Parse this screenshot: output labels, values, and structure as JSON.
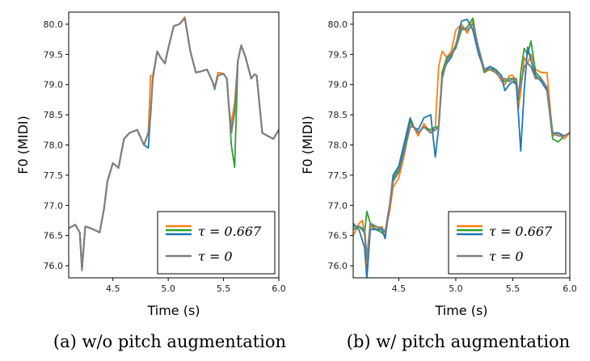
{
  "chart_data": [
    {
      "type": "line",
      "caption": "(a) w/o pitch augmentation",
      "xlabel": "Time (s)",
      "ylabel": "F0 (MIDI)",
      "xlim": [
        4.1,
        6.0
      ],
      "ylim": [
        75.8,
        80.2
      ],
      "xticks": [
        "4.5",
        "5.0",
        "5.5",
        "6.0"
      ],
      "yticks": [
        "76.0",
        "76.5",
        "77.0",
        "77.5",
        "78.0",
        "78.5",
        "79.0",
        "79.5",
        "80.0"
      ],
      "legend": {
        "position": "bottom-right",
        "entries": [
          "τ = 0.667",
          "τ = 0"
        ]
      },
      "series": [
        {
          "name": "τ = 0",
          "color": "#7f7f7f",
          "x": [
            4.1,
            4.16,
            4.2,
            4.22,
            4.25,
            4.3,
            4.35,
            4.38,
            4.42,
            4.45,
            4.5,
            4.55,
            4.6,
            4.65,
            4.72,
            4.78,
            4.82,
            4.84,
            4.86,
            4.9,
            4.93,
            4.97,
            5.0,
            5.05,
            5.1,
            5.15,
            5.2,
            5.25,
            5.3,
            5.35,
            5.4,
            5.42,
            5.45,
            5.5,
            5.53,
            5.55,
            5.57,
            5.6,
            5.63,
            5.66,
            5.7,
            5.75,
            5.78,
            5.8,
            5.85,
            5.9,
            5.95,
            6.0
          ],
          "y": [
            76.62,
            76.68,
            76.55,
            75.95,
            76.65,
            76.62,
            76.58,
            76.55,
            76.95,
            77.4,
            77.7,
            77.62,
            78.1,
            78.2,
            78.25,
            78.0,
            78.2,
            78.5,
            79.1,
            79.55,
            79.45,
            79.35,
            79.6,
            79.97,
            80.0,
            80.1,
            79.55,
            79.2,
            79.22,
            79.25,
            79.05,
            78.95,
            79.15,
            79.18,
            79.1,
            78.6,
            78.2,
            78.55,
            79.4,
            79.65,
            79.45,
            79.1,
            79.17,
            79.15,
            78.2,
            78.15,
            78.1,
            78.25
          ]
        },
        {
          "name": "τ = 0.667 (orange)",
          "color": "#ff7f0e",
          "x": [
            4.1,
            4.16,
            4.2,
            4.22,
            4.25,
            4.3,
            4.35,
            4.38,
            4.42,
            4.45,
            4.5,
            4.55,
            4.6,
            4.65,
            4.72,
            4.78,
            4.82,
            4.84,
            4.86,
            4.9,
            4.93,
            4.97,
            5.0,
            5.05,
            5.1,
            5.15,
            5.2,
            5.25,
            5.3,
            5.35,
            5.4,
            5.42,
            5.45,
            5.5,
            5.53,
            5.55,
            5.57,
            5.6,
            5.63,
            5.66,
            5.7,
            5.75,
            5.78,
            5.8,
            5.85,
            5.9,
            5.95,
            6.0
          ],
          "y": [
            76.62,
            76.68,
            76.55,
            75.95,
            76.65,
            76.62,
            76.58,
            76.55,
            76.95,
            77.4,
            77.7,
            77.62,
            78.1,
            78.2,
            78.25,
            78.0,
            78.2,
            79.15,
            79.15,
            79.55,
            79.45,
            79.35,
            79.6,
            79.97,
            80.0,
            80.12,
            79.55,
            79.2,
            79.22,
            79.25,
            79.05,
            78.95,
            79.2,
            79.18,
            79.1,
            78.6,
            78.35,
            78.7,
            79.4,
            79.65,
            79.45,
            79.1,
            79.17,
            79.15,
            78.2,
            78.15,
            78.1,
            78.25
          ]
        },
        {
          "name": "τ = 0.667 (green)",
          "color": "#2ca02c",
          "x": [
            4.1,
            4.16,
            4.2,
            4.22,
            4.25,
            4.3,
            4.35,
            4.38,
            4.42,
            4.45,
            4.5,
            4.55,
            4.6,
            4.65,
            4.72,
            4.78,
            4.82,
            4.84,
            4.86,
            4.9,
            4.93,
            4.97,
            5.0,
            5.05,
            5.1,
            5.15,
            5.2,
            5.25,
            5.3,
            5.35,
            5.4,
            5.42,
            5.45,
            5.5,
            5.53,
            5.55,
            5.57,
            5.6,
            5.63,
            5.66,
            5.7,
            5.75,
            5.78,
            5.8,
            5.85,
            5.9,
            5.95,
            6.0
          ],
          "y": [
            76.62,
            76.68,
            76.55,
            75.92,
            76.65,
            76.62,
            76.58,
            76.55,
            76.95,
            77.4,
            77.7,
            77.62,
            78.1,
            78.2,
            78.25,
            78.0,
            78.2,
            78.5,
            79.1,
            79.55,
            79.45,
            79.35,
            79.6,
            79.97,
            80.0,
            80.1,
            79.55,
            79.2,
            79.22,
            79.25,
            79.05,
            78.95,
            79.15,
            79.18,
            79.1,
            78.6,
            78.0,
            77.63,
            79.4,
            79.65,
            79.45,
            79.1,
            79.17,
            79.15,
            78.2,
            78.15,
            78.1,
            78.25
          ]
        },
        {
          "name": "τ = 0.667 (blue)",
          "color": "#1f77b4",
          "x": [
            4.1,
            4.16,
            4.2,
            4.22,
            4.25,
            4.3,
            4.35,
            4.38,
            4.42,
            4.45,
            4.5,
            4.55,
            4.6,
            4.65,
            4.72,
            4.78,
            4.82,
            4.84,
            4.86,
            4.9,
            4.93,
            4.97,
            5.0,
            5.05,
            5.1,
            5.15,
            5.2,
            5.25,
            5.3,
            5.35,
            5.4,
            5.42,
            5.45,
            5.5,
            5.53,
            5.55,
            5.57,
            5.6,
            5.63,
            5.66,
            5.7,
            5.75,
            5.78,
            5.8,
            5.85,
            5.9,
            5.95,
            6.0
          ],
          "y": [
            76.62,
            76.68,
            76.55,
            75.95,
            76.65,
            76.62,
            76.58,
            76.55,
            76.95,
            77.4,
            77.7,
            77.62,
            78.1,
            78.2,
            78.25,
            78.0,
            77.95,
            78.5,
            79.1,
            79.55,
            79.45,
            79.35,
            79.6,
            79.97,
            80.0,
            80.1,
            79.55,
            79.2,
            79.22,
            79.25,
            79.05,
            78.92,
            79.15,
            79.18,
            79.1,
            78.6,
            78.2,
            78.55,
            79.4,
            79.65,
            79.45,
            79.1,
            79.17,
            79.15,
            78.2,
            78.15,
            78.1,
            78.25
          ]
        }
      ]
    },
    {
      "type": "line",
      "caption": "(b) w/ pitch augmentation",
      "xlabel": "Time (s)",
      "ylabel": "F0 (MIDI)",
      "xlim": [
        4.1,
        6.0
      ],
      "ylim": [
        75.8,
        80.2
      ],
      "xticks": [
        "4.5",
        "5.0",
        "5.5",
        "6.0"
      ],
      "yticks": [
        "76.0",
        "76.5",
        "77.0",
        "77.5",
        "78.0",
        "78.5",
        "79.0",
        "79.5",
        "80.0"
      ],
      "legend": {
        "position": "bottom-right",
        "entries": [
          "τ = 0.667",
          "τ = 0"
        ]
      },
      "series": [
        {
          "name": "τ = 0",
          "color": "#7f7f7f",
          "x": [
            4.1,
            4.15,
            4.2,
            4.22,
            4.25,
            4.3,
            4.35,
            4.38,
            4.42,
            4.45,
            4.5,
            4.55,
            4.6,
            4.63,
            4.67,
            4.72,
            4.78,
            4.82,
            4.85,
            4.88,
            4.92,
            4.96,
            5.0,
            5.05,
            5.1,
            5.15,
            5.2,
            5.25,
            5.3,
            5.35,
            5.4,
            5.43,
            5.47,
            5.5,
            5.53,
            5.55,
            5.57,
            5.6,
            5.63,
            5.66,
            5.7,
            5.75,
            5.8,
            5.85,
            5.9,
            5.95,
            6.0
          ],
          "y": [
            76.65,
            76.65,
            76.6,
            76.1,
            76.7,
            76.65,
            76.62,
            76.55,
            77.0,
            77.4,
            77.55,
            77.9,
            78.3,
            78.3,
            78.2,
            78.3,
            78.2,
            78.25,
            78.3,
            79.1,
            79.4,
            79.5,
            79.65,
            79.95,
            79.9,
            80.0,
            79.6,
            79.25,
            79.25,
            79.2,
            79.1,
            79.1,
            79.05,
            79.1,
            79.1,
            78.8,
            79.0,
            79.3,
            79.35,
            79.3,
            79.1,
            79.1,
            78.95,
            78.2,
            78.15,
            78.15,
            78.2
          ]
        },
        {
          "name": "τ = 0.667 (orange)",
          "color": "#ff7f0e",
          "x": [
            4.1,
            4.15,
            4.18,
            4.2,
            4.22,
            4.25,
            4.3,
            4.35,
            4.38,
            4.42,
            4.45,
            4.5,
            4.55,
            4.6,
            4.63,
            4.67,
            4.72,
            4.78,
            4.82,
            4.85,
            4.88,
            4.92,
            4.96,
            5.0,
            5.05,
            5.1,
            5.15,
            5.2,
            5.25,
            5.3,
            5.35,
            5.4,
            5.43,
            5.47,
            5.5,
            5.53,
            5.55,
            5.57,
            5.6,
            5.63,
            5.66,
            5.7,
            5.75,
            5.8,
            5.85,
            5.9,
            5.95,
            6.0
          ],
          "y": [
            76.5,
            76.7,
            76.75,
            76.5,
            76.0,
            76.65,
            76.6,
            76.65,
            76.55,
            76.9,
            77.3,
            77.45,
            77.85,
            78.35,
            78.3,
            78.15,
            78.35,
            78.2,
            78.3,
            79.3,
            79.55,
            79.45,
            79.55,
            79.9,
            80.0,
            79.85,
            80.05,
            79.55,
            79.2,
            79.25,
            79.25,
            79.05,
            79.0,
            79.15,
            79.15,
            79.05,
            78.6,
            78.9,
            79.45,
            79.35,
            79.5,
            79.25,
            79.2,
            79.2,
            78.15,
            78.2,
            78.1,
            78.2
          ]
        },
        {
          "name": "τ = 0.667 (green)",
          "color": "#2ca02c",
          "x": [
            4.1,
            4.15,
            4.2,
            4.22,
            4.25,
            4.3,
            4.35,
            4.38,
            4.42,
            4.45,
            4.5,
            4.55,
            4.6,
            4.63,
            4.67,
            4.72,
            4.78,
            4.82,
            4.85,
            4.88,
            4.92,
            4.96,
            5.0,
            5.05,
            5.1,
            5.15,
            5.2,
            5.25,
            5.3,
            5.35,
            5.4,
            5.43,
            5.47,
            5.5,
            5.53,
            5.55,
            5.57,
            5.6,
            5.63,
            5.66,
            5.7,
            5.75,
            5.8,
            5.85,
            5.9,
            5.95,
            6.0
          ],
          "y": [
            76.6,
            76.65,
            76.55,
            76.9,
            76.7,
            76.6,
            76.55,
            76.5,
            77.0,
            77.45,
            77.6,
            78.0,
            78.4,
            78.3,
            78.2,
            78.3,
            78.25,
            78.3,
            78.3,
            79.2,
            79.45,
            79.5,
            79.6,
            79.9,
            79.95,
            80.1,
            79.55,
            79.2,
            79.3,
            79.2,
            79.1,
            79.05,
            79.1,
            79.1,
            79.0,
            78.75,
            79.2,
            79.6,
            79.5,
            79.72,
            79.2,
            79.1,
            78.9,
            78.1,
            78.05,
            78.15,
            78.2
          ]
        },
        {
          "name": "τ = 0.667 (blue)",
          "color": "#1f77b4",
          "x": [
            4.1,
            4.15,
            4.2,
            4.22,
            4.25,
            4.3,
            4.35,
            4.38,
            4.42,
            4.45,
            4.5,
            4.55,
            4.6,
            4.63,
            4.67,
            4.72,
            4.78,
            4.82,
            4.85,
            4.88,
            4.92,
            4.96,
            5.0,
            5.05,
            5.1,
            5.15,
            5.2,
            5.25,
            5.3,
            5.35,
            5.4,
            5.43,
            5.47,
            5.5,
            5.53,
            5.55,
            5.57,
            5.6,
            5.63,
            5.66,
            5.7,
            5.75,
            5.8,
            5.85,
            5.9,
            5.95,
            6.0
          ],
          "y": [
            76.7,
            76.6,
            76.3,
            75.78,
            76.6,
            76.6,
            76.6,
            76.45,
            77.0,
            77.5,
            77.65,
            78.05,
            78.45,
            78.3,
            78.25,
            78.45,
            78.5,
            77.8,
            78.3,
            79.15,
            79.35,
            79.45,
            79.65,
            80.05,
            80.08,
            79.9,
            79.5,
            79.25,
            79.3,
            79.25,
            79.15,
            78.9,
            79.0,
            79.05,
            79.0,
            78.5,
            77.9,
            78.9,
            79.62,
            79.4,
            79.15,
            79.05,
            78.9,
            78.2,
            78.2,
            78.15,
            78.2
          ]
        }
      ]
    }
  ]
}
